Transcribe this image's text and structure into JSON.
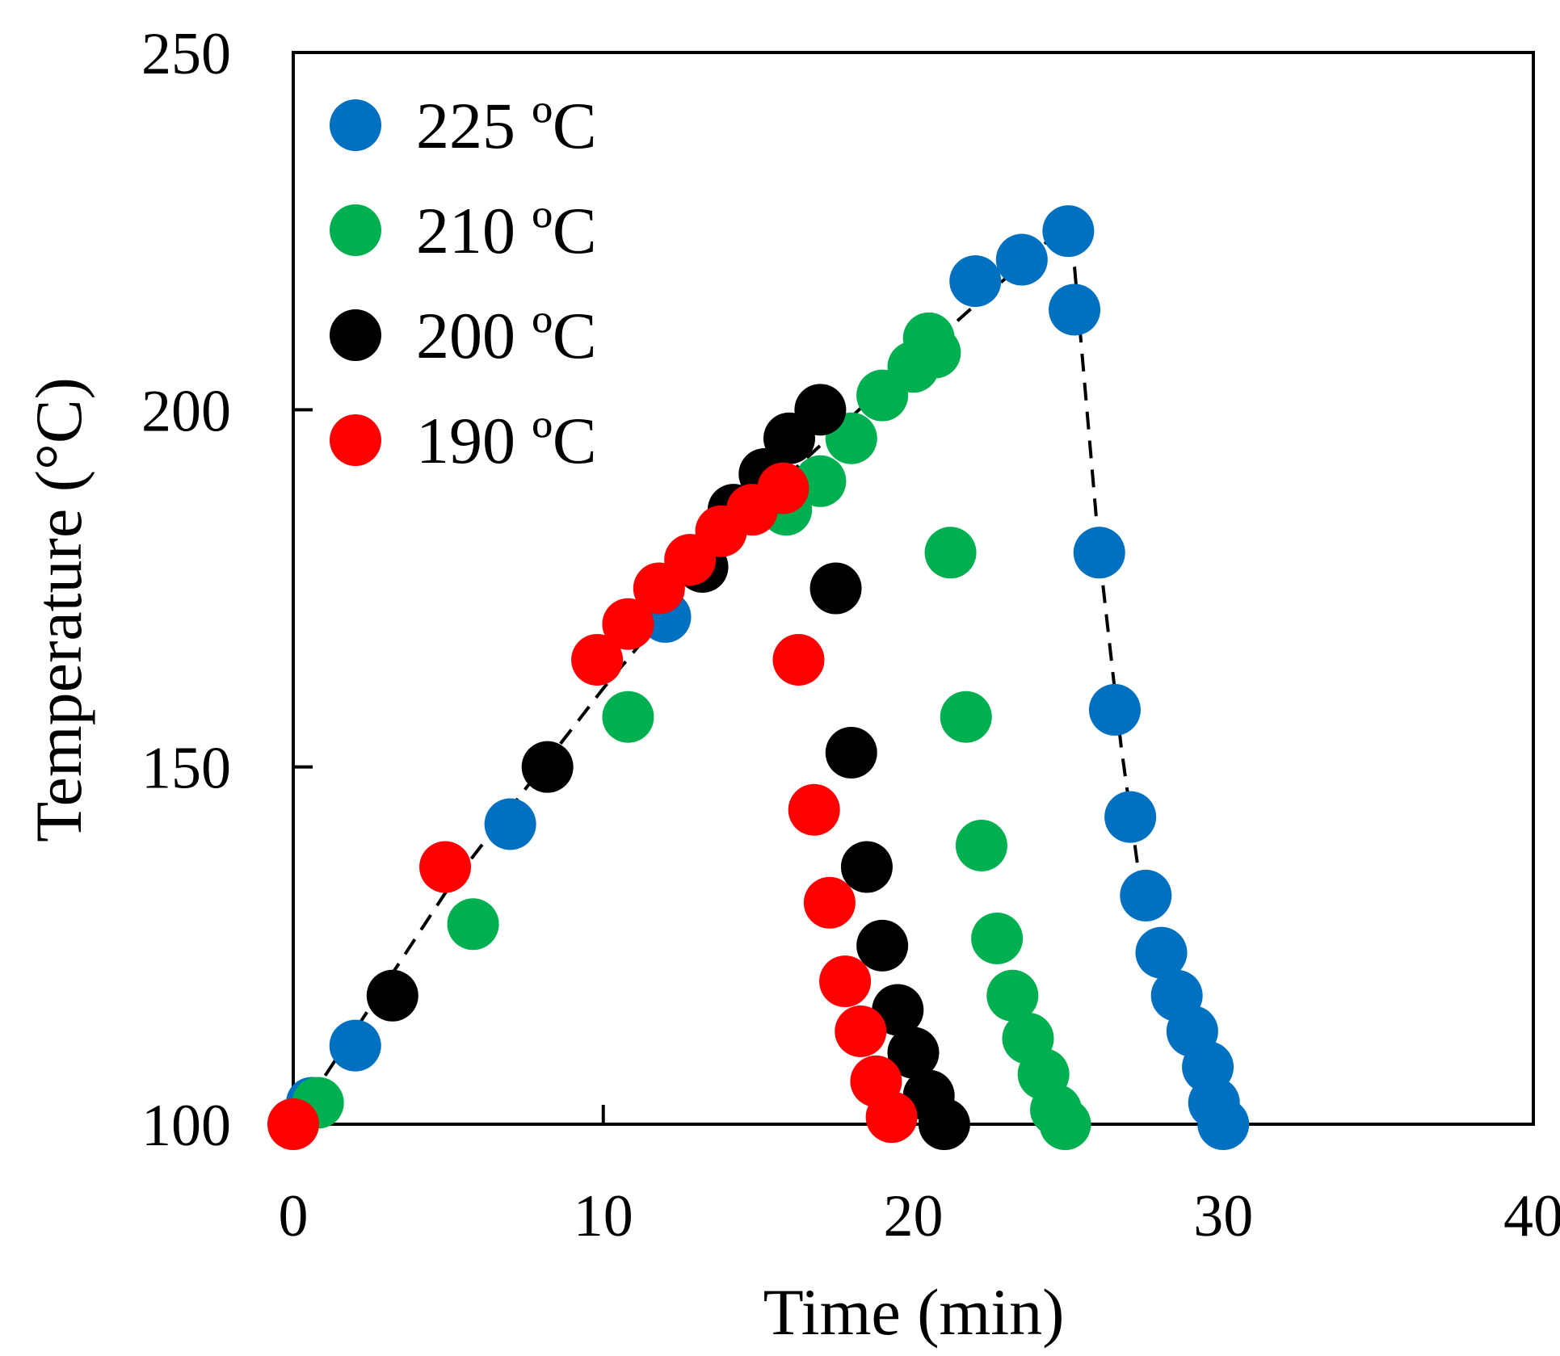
{
  "chart_data": {
    "type": "scatter",
    "title": "",
    "xlabel": "Time (min)",
    "ylabel": "Temperature (°C)",
    "xlim": [
      0,
      40
    ],
    "ylim": [
      100,
      250
    ],
    "xticks": [
      0,
      10,
      20,
      30,
      40
    ],
    "yticks": [
      100,
      150,
      200,
      250
    ],
    "grid": false,
    "legend_position": "top-left",
    "series": [
      {
        "name": "225 ºC",
        "color": "#0070C0",
        "points": [
          [
            0.6,
            103
          ],
          [
            2,
            111
          ],
          [
            7,
            142
          ],
          [
            12,
            171
          ],
          [
            22,
            218
          ],
          [
            23.5,
            221
          ],
          [
            25,
            225
          ],
          [
            25.2,
            214
          ],
          [
            26,
            180
          ],
          [
            26.5,
            158
          ],
          [
            27,
            143
          ],
          [
            27.5,
            132
          ],
          [
            28,
            124
          ],
          [
            28.5,
            118
          ],
          [
            29,
            113
          ],
          [
            29.5,
            108
          ],
          [
            29.7,
            103
          ],
          [
            30,
            100
          ]
        ]
      },
      {
        "name": "210 ºC",
        "color": "#00B050",
        "points": [
          [
            0.8,
            103
          ],
          [
            5.8,
            128
          ],
          [
            10.8,
            157
          ],
          [
            15.9,
            186
          ],
          [
            17,
            190
          ],
          [
            18,
            196
          ],
          [
            19,
            202
          ],
          [
            20,
            206
          ],
          [
            20.5,
            210
          ],
          [
            20.7,
            208
          ],
          [
            21.2,
            180
          ],
          [
            21.7,
            157
          ],
          [
            22.2,
            139
          ],
          [
            22.7,
            126
          ],
          [
            23.2,
            118
          ],
          [
            23.7,
            112
          ],
          [
            24.2,
            107
          ],
          [
            24.6,
            102
          ],
          [
            24.9,
            100
          ]
        ]
      },
      {
        "name": "200 ºC",
        "color": "#000000",
        "points": [
          [
            3.2,
            118
          ],
          [
            8.2,
            150
          ],
          [
            13.2,
            178
          ],
          [
            14.2,
            186
          ],
          [
            15.2,
            191
          ],
          [
            16,
            196
          ],
          [
            17,
            200
          ],
          [
            17.5,
            175
          ],
          [
            18,
            152
          ],
          [
            18.5,
            136
          ],
          [
            19,
            125
          ],
          [
            19.5,
            116
          ],
          [
            20,
            110
          ],
          [
            20.5,
            104
          ],
          [
            21,
            100
          ]
        ]
      },
      {
        "name": "190 ºC",
        "color": "#FF0000",
        "points": [
          [
            0,
            100
          ],
          [
            4.9,
            136
          ],
          [
            9.8,
            165
          ],
          [
            10.8,
            170
          ],
          [
            11.8,
            175
          ],
          [
            12.8,
            179
          ],
          [
            13.8,
            183
          ],
          [
            14.8,
            186
          ],
          [
            15.8,
            189
          ],
          [
            16.3,
            165
          ],
          [
            16.8,
            144
          ],
          [
            17.3,
            131
          ],
          [
            17.8,
            120
          ],
          [
            18.3,
            113
          ],
          [
            18.8,
            106
          ],
          [
            19.3,
            101
          ]
        ]
      }
    ],
    "trend_line": {
      "style": "dashed",
      "color": "#000000",
      "points": [
        [
          0,
          100
        ],
        [
          5,
          133
        ],
        [
          10,
          161
        ],
        [
          15,
          187
        ],
        [
          20,
          207
        ],
        [
          24.7,
          225
        ],
        [
          25.2,
          220
        ],
        [
          26,
          180
        ],
        [
          26.7,
          153
        ],
        [
          27.5,
          128
        ],
        [
          28.5,
          114
        ],
        [
          29.2,
          106
        ],
        [
          30,
          100
        ]
      ]
    }
  }
}
